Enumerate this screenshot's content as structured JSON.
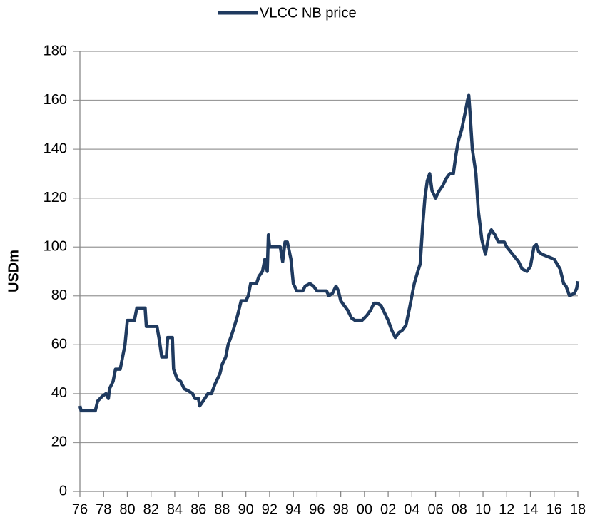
{
  "chart_data": {
    "type": "line",
    "y_label": "USDm",
    "x": [
      1976.0,
      1976.1,
      1977.0,
      1977.3,
      1977.5,
      1977.9,
      1978.2,
      1978.4,
      1978.5,
      1978.8,
      1979.0,
      1979.4,
      1979.6,
      1979.8,
      1980.0,
      1980.3,
      1980.6,
      1980.8,
      1981.5,
      1981.6,
      1982.5,
      1982.7,
      1982.9,
      1983.3,
      1983.4,
      1983.8,
      1983.9,
      1984.2,
      1984.5,
      1984.8,
      1985.2,
      1985.5,
      1985.7,
      1986.0,
      1986.1,
      1986.4,
      1986.8,
      1987.1,
      1987.4,
      1987.8,
      1988.0,
      1988.3,
      1988.5,
      1988.8,
      1989.0,
      1989.3,
      1989.6,
      1990.0,
      1990.2,
      1990.4,
      1990.9,
      1991.1,
      1991.4,
      1991.6,
      1991.8,
      1991.9,
      1992.0,
      1992.6,
      1992.9,
      1993.1,
      1993.3,
      1993.5,
      1993.8,
      1994.0,
      1994.3,
      1994.8,
      1995.0,
      1995.4,
      1995.7,
      1996.0,
      1996.5,
      1996.8,
      1997.0,
      1997.3,
      1997.6,
      1997.8,
      1998.0,
      1998.3,
      1998.6,
      1998.9,
      1999.2,
      1999.5,
      1999.8,
      2000.2,
      2000.5,
      2000.8,
      2001.1,
      2001.4,
      2001.7,
      2002.0,
      2002.3,
      2002.6,
      2002.9,
      2003.2,
      2003.5,
      2003.8,
      2004.2,
      2004.5,
      2004.7,
      2004.9,
      2005.1,
      2005.3,
      2005.5,
      2005.7,
      2006.0,
      2006.3,
      2006.6,
      2006.9,
      2007.2,
      2007.5,
      2007.7,
      2007.9,
      2008.2,
      2008.5,
      2008.7,
      2008.8,
      2008.9,
      2009.1,
      2009.4,
      2009.6,
      2009.9,
      2010.2,
      2010.5,
      2010.7,
      2011.0,
      2011.3,
      2011.8,
      2012.0,
      2012.5,
      2013.0,
      2013.3,
      2013.7,
      2014.0,
      2014.3,
      2014.5,
      2014.7,
      2015.0,
      2015.5,
      2016.0,
      2016.5,
      2016.8,
      2017.0,
      2017.3,
      2017.7,
      2017.9,
      2018.0
    ],
    "series": [
      {
        "name": "VLCC NB price",
        "color": "#1f3a5f",
        "values": [
          35,
          33,
          33,
          33,
          37,
          39,
          40,
          38,
          42,
          45,
          50,
          50,
          55,
          60,
          70,
          70,
          70,
          75,
          75,
          67.5,
          67.5,
          62,
          55,
          55,
          63,
          63,
          50,
          46,
          45,
          42,
          41,
          40,
          38,
          38,
          35,
          37,
          40,
          40,
          44,
          48,
          52,
          55,
          60,
          64,
          67,
          72,
          78,
          78,
          80,
          85,
          85,
          88,
          90,
          95,
          90,
          105,
          100,
          100,
          100,
          94,
          102,
          102,
          95,
          85,
          82,
          82,
          84,
          85,
          84,
          82,
          82,
          82,
          80,
          81,
          84,
          82,
          78,
          76,
          74,
          71,
          70,
          70,
          70,
          72,
          74,
          77,
          77,
          76,
          73,
          70,
          66,
          63,
          65,
          66,
          68,
          75,
          85,
          90,
          93,
          108,
          120,
          127,
          130,
          123,
          120,
          123,
          125,
          128,
          130,
          130,
          137,
          143,
          148,
          155,
          160,
          162,
          155,
          140,
          130,
          115,
          103,
          97,
          105,
          107,
          105,
          102,
          102,
          100,
          97,
          94,
          91,
          90,
          92,
          100,
          101,
          98,
          97,
          96,
          95,
          91,
          85,
          84,
          80,
          81,
          83,
          86
        ]
      }
    ],
    "xlim": [
      1976,
      2018
    ],
    "xticks": [
      {
        "value": 1976,
        "label": "76"
      },
      {
        "value": 1978,
        "label": "78"
      },
      {
        "value": 1980,
        "label": "80"
      },
      {
        "value": 1982,
        "label": "82"
      },
      {
        "value": 1984,
        "label": "84"
      },
      {
        "value": 1986,
        "label": "86"
      },
      {
        "value": 1988,
        "label": "88"
      },
      {
        "value": 1990,
        "label": "90"
      },
      {
        "value": 1992,
        "label": "92"
      },
      {
        "value": 1994,
        "label": "94"
      },
      {
        "value": 1996,
        "label": "96"
      },
      {
        "value": 1998,
        "label": "98"
      },
      {
        "value": 2000,
        "label": "00"
      },
      {
        "value": 2002,
        "label": "02"
      },
      {
        "value": 2004,
        "label": "04"
      },
      {
        "value": 2006,
        "label": "06"
      },
      {
        "value": 2008,
        "label": "08"
      },
      {
        "value": 2010,
        "label": "10"
      },
      {
        "value": 2012,
        "label": "12"
      },
      {
        "value": 2014,
        "label": "14"
      },
      {
        "value": 2016,
        "label": "16"
      },
      {
        "value": 2018,
        "label": "18"
      }
    ],
    "ylim": [
      0,
      180
    ],
    "yticks": [
      0,
      20,
      40,
      60,
      80,
      100,
      120,
      140,
      160,
      180
    ],
    "grid": true,
    "legend": "top"
  }
}
